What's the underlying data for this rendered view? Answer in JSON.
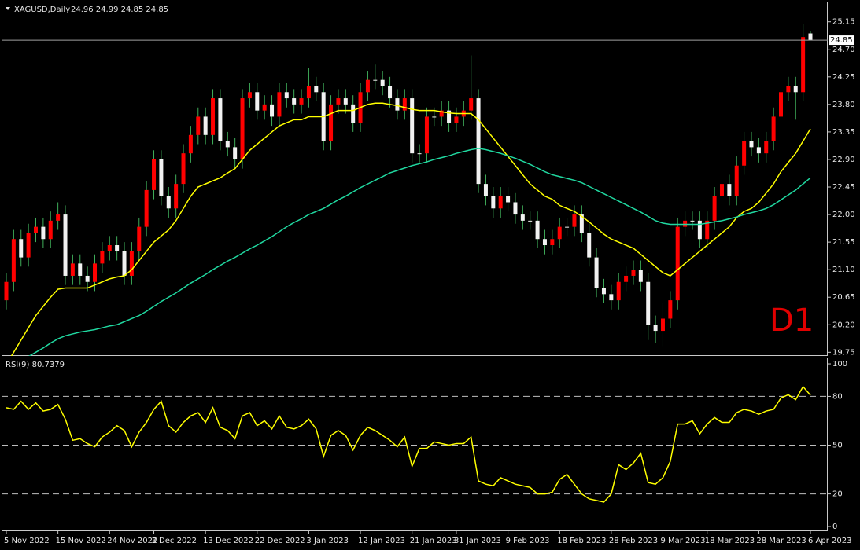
{
  "chart_data": [
    {
      "type": "candlestick",
      "title": "XAGUSD,Daily",
      "subtitle": "24.96 24.99 24.85 24.85",
      "annotation": "D1",
      "categories": [
        "5 Nov 2022",
        null,
        null,
        null,
        null,
        null,
        null,
        "15 Nov 2022",
        null,
        null,
        null,
        null,
        null,
        null,
        "24 Nov 2022",
        null,
        null,
        null,
        null,
        null,
        "3 Dec 2022",
        null,
        null,
        null,
        null,
        null,
        null,
        "13 Dec 2022",
        null,
        null,
        null,
        null,
        null,
        null,
        "22 Dec 2022",
        null,
        null,
        null,
        null,
        null,
        null,
        "3 Jan 2023",
        null,
        null,
        null,
        null,
        null,
        null,
        "12 Jan 2023",
        null,
        null,
        null,
        null,
        null,
        null,
        "21 Jan 2023",
        null,
        null,
        null,
        null,
        null,
        "31 Jan 2023",
        null,
        null,
        null,
        null,
        null,
        null,
        "9 Feb 2023",
        null,
        null,
        null,
        null,
        null,
        null,
        "18 Feb 2023",
        null,
        null,
        null,
        null,
        null,
        null,
        "28 Feb 2023",
        null,
        null,
        null,
        null,
        null,
        null,
        "9 Mar 2023",
        null,
        null,
        null,
        null,
        null,
        "18 Mar 2023",
        null,
        null,
        null,
        null,
        null,
        null,
        "28 Mar 2023",
        null,
        null,
        null,
        null,
        null,
        null,
        "6 Apr 2023"
      ],
      "open": [
        20.6,
        20.9,
        21.6,
        21.3,
        21.7,
        21.8,
        21.6,
        21.9,
        22.0,
        21.0,
        21.2,
        21.0,
        20.9,
        21.2,
        21.4,
        21.5,
        21.4,
        21.0,
        21.4,
        21.8,
        22.4,
        22.9,
        22.3,
        22.1,
        22.5,
        23.0,
        23.3,
        23.6,
        23.3,
        23.9,
        23.2,
        23.1,
        22.9,
        23.9,
        24.0,
        23.7,
        23.8,
        23.6,
        24.0,
        23.9,
        23.8,
        23.9,
        24.1,
        24.0,
        23.2,
        23.8,
        23.9,
        23.8,
        23.5,
        24.0,
        24.2,
        24.2,
        24.1,
        23.9,
        23.7,
        23.9,
        23.0,
        23.0,
        23.6,
        23.6,
        23.7,
        23.5,
        23.6,
        23.7,
        23.9,
        22.5,
        22.3,
        22.1,
        22.3,
        22.2,
        22.0,
        21.9,
        21.9,
        21.6,
        21.5,
        21.6,
        21.8,
        21.8,
        22.0,
        21.7,
        21.3,
        20.8,
        20.7,
        20.6,
        20.9,
        21.0,
        21.1,
        20.9,
        20.2,
        20.1,
        20.3,
        20.6,
        21.8,
        21.9,
        21.9,
        21.6,
        21.9,
        22.3,
        22.5,
        22.3,
        22.8,
        23.2,
        23.1,
        23.0,
        23.2,
        23.6,
        24.0,
        24.1,
        24.0,
        24.96
      ],
      "high": [
        21.05,
        21.75,
        21.75,
        21.85,
        21.95,
        21.95,
        22.05,
        22.2,
        22.15,
        21.35,
        21.35,
        21.15,
        21.35,
        21.55,
        21.65,
        21.65,
        21.55,
        21.55,
        21.95,
        22.55,
        23.05,
        23.05,
        22.45,
        22.65,
        23.15,
        23.45,
        23.75,
        23.75,
        24.05,
        24.05,
        23.35,
        23.25,
        24.05,
        24.15,
        24.15,
        23.95,
        23.95,
        24.15,
        24.15,
        24.05,
        24.05,
        24.4,
        24.25,
        24.15,
        23.95,
        24.05,
        24.05,
        23.95,
        24.15,
        24.35,
        24.45,
        24.35,
        24.25,
        24.05,
        24.05,
        24.05,
        23.15,
        23.75,
        23.75,
        23.85,
        23.85,
        23.75,
        23.85,
        24.6,
        24.05,
        22.65,
        22.45,
        22.45,
        22.45,
        22.35,
        22.15,
        22.05,
        22.05,
        21.75,
        21.75,
        21.95,
        21.95,
        22.15,
        22.15,
        21.85,
        21.45,
        20.95,
        20.85,
        21.05,
        21.15,
        21.25,
        21.25,
        21.05,
        20.35,
        20.55,
        20.75,
        21.95,
        22.05,
        22.05,
        22.05,
        22.05,
        22.45,
        22.65,
        22.65,
        22.95,
        23.35,
        23.35,
        23.25,
        23.35,
        23.75,
        24.15,
        24.25,
        24.25,
        25.12,
        24.99
      ],
      "low": [
        20.45,
        20.75,
        21.15,
        21.15,
        21.55,
        21.45,
        21.45,
        21.75,
        20.85,
        20.85,
        20.85,
        20.75,
        20.75,
        21.05,
        21.25,
        21.25,
        20.85,
        20.85,
        21.25,
        21.65,
        22.25,
        22.15,
        21.95,
        21.95,
        22.35,
        22.85,
        23.15,
        23.15,
        23.15,
        23.05,
        22.95,
        22.75,
        22.75,
        23.75,
        23.55,
        23.55,
        23.45,
        23.45,
        23.75,
        23.65,
        23.65,
        23.75,
        23.85,
        23.05,
        23.05,
        23.65,
        23.65,
        23.35,
        23.35,
        23.85,
        24.05,
        23.95,
        23.75,
        23.55,
        23.55,
        22.85,
        22.85,
        22.85,
        23.45,
        23.45,
        23.35,
        23.35,
        23.45,
        23.55,
        22.35,
        22.15,
        21.95,
        21.95,
        22.05,
        21.85,
        21.75,
        21.75,
        21.45,
        21.35,
        21.35,
        21.45,
        21.65,
        21.65,
        21.55,
        21.15,
        20.65,
        20.55,
        20.45,
        20.45,
        20.75,
        20.85,
        20.75,
        19.95,
        19.9,
        19.85,
        20.15,
        20.45,
        21.65,
        21.75,
        21.45,
        21.45,
        21.75,
        22.15,
        22.15,
        22.15,
        22.65,
        22.95,
        22.85,
        22.85,
        23.05,
        23.45,
        23.85,
        23.55,
        23.85,
        24.85
      ],
      "close": [
        20.9,
        21.6,
        21.3,
        21.7,
        21.8,
        21.6,
        21.9,
        22.0,
        21.0,
        21.2,
        21.0,
        20.9,
        21.2,
        21.4,
        21.5,
        21.4,
        21.0,
        21.4,
        21.8,
        22.4,
        22.9,
        22.3,
        22.1,
        22.5,
        23.0,
        23.3,
        23.6,
        23.3,
        23.9,
        23.2,
        23.1,
        22.9,
        23.9,
        24.0,
        23.7,
        23.8,
        23.6,
        24.0,
        23.9,
        23.8,
        23.9,
        24.1,
        24.0,
        23.2,
        23.8,
        23.9,
        23.8,
        23.5,
        24.0,
        24.2,
        24.2,
        24.1,
        23.9,
        23.7,
        23.9,
        23.0,
        23.0,
        23.6,
        23.6,
        23.7,
        23.5,
        23.6,
        23.7,
        23.9,
        22.5,
        22.3,
        22.1,
        22.3,
        22.2,
        22.0,
        21.9,
        21.9,
        21.6,
        21.5,
        21.6,
        21.8,
        21.8,
        22.0,
        21.7,
        21.3,
        20.8,
        20.7,
        20.6,
        20.9,
        21.0,
        21.1,
        20.9,
        20.2,
        20.1,
        20.3,
        20.6,
        21.8,
        21.9,
        21.9,
        21.6,
        21.9,
        22.3,
        22.5,
        22.3,
        22.8,
        23.2,
        23.1,
        23.0,
        23.2,
        23.6,
        24.0,
        24.1,
        24.0,
        24.9,
        24.85
      ],
      "up_color": "#ff0000",
      "down_color": "#f2f2f2",
      "wick_color": "#3fae5a",
      "series": [
        {
          "color": "#ffff00",
          "values": [
            19.55,
            19.75,
            19.95,
            20.15,
            20.35,
            20.5,
            20.65,
            20.78,
            20.8,
            20.8,
            20.8,
            20.8,
            20.85,
            20.9,
            20.95,
            20.98,
            21.0,
            21.1,
            21.25,
            21.4,
            21.55,
            21.65,
            21.75,
            21.9,
            22.1,
            22.3,
            22.45,
            22.5,
            22.55,
            22.6,
            22.68,
            22.75,
            22.9,
            23.05,
            23.15,
            23.25,
            23.35,
            23.45,
            23.5,
            23.55,
            23.55,
            23.6,
            23.6,
            23.6,
            23.65,
            23.7,
            23.7,
            23.7,
            23.75,
            23.8,
            23.82,
            23.82,
            23.8,
            23.78,
            23.75,
            23.72,
            23.7,
            23.7,
            23.7,
            23.68,
            23.66,
            23.65,
            23.65,
            23.65,
            23.55,
            23.4,
            23.25,
            23.1,
            22.95,
            22.8,
            22.65,
            22.5,
            22.4,
            22.3,
            22.25,
            22.15,
            22.1,
            22.05,
            21.97,
            21.88,
            21.78,
            21.68,
            21.6,
            21.55,
            21.5,
            21.45,
            21.35,
            21.25,
            21.15,
            21.05,
            21.0,
            21.1,
            21.2,
            21.3,
            21.4,
            21.5,
            21.6,
            21.7,
            21.8,
            21.95,
            22.05,
            22.1,
            22.2,
            22.35,
            22.5,
            22.7,
            22.85,
            23.0,
            23.2,
            23.4
          ]
        },
        {
          "color": "#20d8a0",
          "values": [
            19.45,
            19.52,
            19.6,
            19.68,
            19.75,
            19.82,
            19.9,
            19.97,
            20.02,
            20.05,
            20.08,
            20.1,
            20.12,
            20.15,
            20.18,
            20.2,
            20.25,
            20.3,
            20.35,
            20.42,
            20.5,
            20.58,
            20.65,
            20.72,
            20.8,
            20.88,
            20.95,
            21.02,
            21.1,
            21.17,
            21.24,
            21.3,
            21.37,
            21.44,
            21.5,
            21.57,
            21.64,
            21.72,
            21.8,
            21.87,
            21.93,
            22.0,
            22.05,
            22.1,
            22.17,
            22.24,
            22.3,
            22.37,
            22.44,
            22.5,
            22.56,
            22.62,
            22.68,
            22.72,
            22.76,
            22.8,
            22.83,
            22.86,
            22.9,
            22.93,
            22.96,
            23.0,
            23.03,
            23.06,
            23.08,
            23.06,
            23.03,
            23.0,
            22.96,
            22.92,
            22.87,
            22.82,
            22.76,
            22.7,
            22.65,
            22.62,
            22.59,
            22.56,
            22.52,
            22.46,
            22.4,
            22.34,
            22.28,
            22.22,
            22.16,
            22.1,
            22.04,
            21.97,
            21.9,
            21.86,
            21.84,
            21.84,
            21.84,
            21.84,
            21.84,
            21.86,
            21.88,
            21.9,
            21.93,
            21.96,
            22.0,
            22.03,
            22.06,
            22.1,
            22.16,
            22.24,
            22.32,
            22.4,
            22.5,
            22.6
          ]
        }
      ],
      "last_price": {
        "value": 24.85,
        "label": "24.85"
      },
      "ylim": [
        19.69,
        25.48
      ],
      "yticks": [
        {
          "value": 25.15,
          "label": "25.15"
        },
        {
          "value": 24.7,
          "label": "24.70"
        },
        {
          "value": 24.25,
          "label": "24.25"
        },
        {
          "value": 23.8,
          "label": "23.80"
        },
        {
          "value": 23.35,
          "label": "23.35"
        },
        {
          "value": 22.9,
          "label": "22.90"
        },
        {
          "value": 22.45,
          "label": "22.45"
        },
        {
          "value": 22.0,
          "label": "22.00"
        },
        {
          "value": 21.55,
          "label": "21.55"
        },
        {
          "value": 21.1,
          "label": "21.10"
        },
        {
          "value": 20.65,
          "label": "20.65"
        },
        {
          "value": 20.2,
          "label": "20.20"
        },
        {
          "value": 19.75,
          "label": "19.75"
        }
      ]
    },
    {
      "type": "line",
      "title": "RSI(9) 80.7379",
      "color": "#ffff00",
      "values": [
        73,
        72,
        77,
        72,
        76,
        71,
        72,
        75,
        66,
        53,
        54,
        51,
        49,
        55,
        58,
        62,
        59,
        49,
        58,
        64,
        72,
        77,
        62,
        58,
        64,
        68,
        70,
        64,
        73,
        61,
        59,
        54,
        68,
        70,
        62,
        65,
        60,
        68,
        61,
        60,
        62,
        66,
        60,
        43,
        56,
        59,
        56,
        47,
        56,
        61,
        59,
        56,
        53,
        49,
        55,
        37,
        48,
        48,
        52,
        51,
        50,
        51,
        51,
        55,
        28,
        26,
        25,
        30,
        28,
        26,
        25,
        24,
        20,
        20,
        21,
        29,
        32,
        26,
        20,
        17,
        16,
        15,
        20,
        38,
        35,
        39,
        45,
        27,
        26,
        30,
        40,
        63,
        63,
        65,
        57,
        63,
        67,
        64,
        64,
        70,
        72,
        71,
        69,
        71,
        72,
        79,
        81,
        78,
        86,
        80.74
      ],
      "ylim": [
        -2.9,
        103.4
      ],
      "yticks": [
        0,
        20,
        50,
        80,
        100
      ],
      "levels": [
        20,
        50,
        80
      ]
    }
  ]
}
